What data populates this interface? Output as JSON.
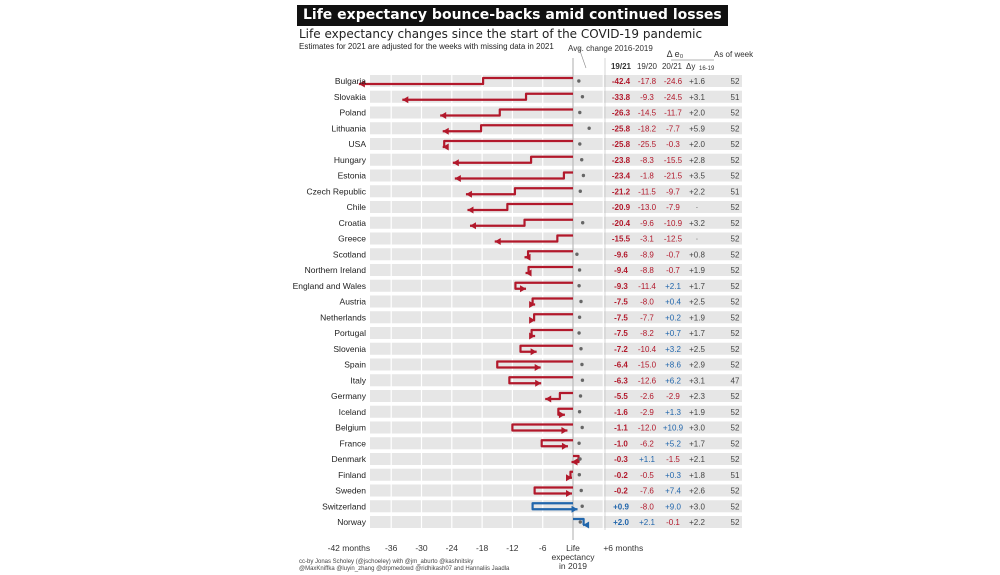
{
  "title": "Life expectancy bounce-backs amid continued losses",
  "subtitle": "Life expectancy changes since the start of the COVID-19 pandemic",
  "note": "Estimates for 2021 are adjusted for the weeks with missing data in 2021",
  "headers": {
    "avg_change": "Avg. change 2016-2019",
    "delta": "Δ e₀",
    "c1921": "19/21",
    "c1920": "19/20",
    "c2021": "20/21",
    "avg": "Δy",
    "avg_sub": "16-19",
    "asof": "As of week"
  },
  "credit": [
    "cc-by Jonas Scholey (@jschoeley) with @jm_aburto @kashnitsky",
    "@MaxKniffka @luyin_zhang @drpmedowd @ridhikash07 and Hannaliis Jaadla"
  ],
  "colors": {
    "loss": "#b2182b",
    "gain": "#2166ac",
    "band": "#e6e6e6",
    "text": "#222222"
  },
  "chart_data": {
    "type": "bar",
    "title": "Life expectancy bounce-backs amid continued losses",
    "xlabel": "months",
    "x_ticks": [
      "-42 months",
      "-36",
      "-30",
      "-24",
      "-18",
      "-12",
      "-6",
      "Life expectancy in 2019",
      "+6 months"
    ],
    "xlim": [
      -42,
      6
    ],
    "grid": true,
    "rows": [
      {
        "country": "Bulgaria",
        "d1921": "-42.4",
        "d1920": "-17.8",
        "d2021": "-24.6",
        "avg": "+1.6",
        "week": "52",
        "v1920": -17.8,
        "v1921": -42.4,
        "avgv": 1.6
      },
      {
        "country": "Slovakia",
        "d1921": "-33.8",
        "d1920": "-9.3",
        "d2021": "-24.5",
        "avg": "+3.1",
        "week": "51",
        "v1920": -9.3,
        "v1921": -33.8,
        "avgv": 3.1
      },
      {
        "country": "Poland",
        "d1921": "-26.3",
        "d1920": "-14.5",
        "d2021": "-11.7",
        "avg": "+2.0",
        "week": "52",
        "v1920": -14.5,
        "v1921": -26.3,
        "avgv": 2.0
      },
      {
        "country": "Lithuania",
        "d1921": "-25.8",
        "d1920": "-18.2",
        "d2021": "-7.7",
        "avg": "+5.9",
        "week": "52",
        "v1920": -18.2,
        "v1921": -25.8,
        "avgv": 5.9
      },
      {
        "country": "USA",
        "d1921": "-25.8",
        "d1920": "-25.5",
        "d2021": "-0.3",
        "avg": "+2.0",
        "week": "52",
        "v1920": -25.5,
        "v1921": -25.8,
        "avgv": 2.0
      },
      {
        "country": "Hungary",
        "d1921": "-23.8",
        "d1920": "-8.3",
        "d2021": "-15.5",
        "avg": "+2.8",
        "week": "52",
        "v1920": -8.3,
        "v1921": -23.8,
        "avgv": 2.8
      },
      {
        "country": "Estonia",
        "d1921": "-23.4",
        "d1920": "-1.8",
        "d2021": "-21.5",
        "avg": "+3.5",
        "week": "52",
        "v1920": -1.8,
        "v1921": -23.4,
        "avgv": 3.5
      },
      {
        "country": "Czech Republic",
        "d1921": "-21.2",
        "d1920": "-11.5",
        "d2021": "-9.7",
        "avg": "+2.2",
        "week": "51",
        "v1920": -11.5,
        "v1921": -21.2,
        "avgv": 2.2
      },
      {
        "country": "Chile",
        "d1921": "-20.9",
        "d1920": "-13.0",
        "d2021": "-7.9",
        "avg": "·",
        "week": "52",
        "v1920": -13.0,
        "v1921": -20.9,
        "avgv": null
      },
      {
        "country": "Croatia",
        "d1921": "-20.4",
        "d1920": "-9.6",
        "d2021": "-10.9",
        "avg": "+3.2",
        "week": "52",
        "v1920": -9.6,
        "v1921": -20.4,
        "avgv": 3.2
      },
      {
        "country": "Greece",
        "d1921": "-15.5",
        "d1920": "-3.1",
        "d2021": "-12.5",
        "avg": "·",
        "week": "52",
        "v1920": -3.1,
        "v1921": -15.5,
        "avgv": null
      },
      {
        "country": "Scotland",
        "d1921": "-9.6",
        "d1920": "-8.9",
        "d2021": "-0.7",
        "avg": "+0.8",
        "week": "52",
        "v1920": -8.9,
        "v1921": -9.6,
        "avgv": 0.8
      },
      {
        "country": "Northern Ireland",
        "d1921": "-9.4",
        "d1920": "-8.8",
        "d2021": "-0.7",
        "avg": "+1.9",
        "week": "52",
        "v1920": -8.8,
        "v1921": -9.4,
        "avgv": 1.9
      },
      {
        "country": "England and Wales",
        "d1921": "-9.3",
        "d1920": "-11.4",
        "d2021": "+2.1",
        "avg": "+1.7",
        "week": "52",
        "v1920": -11.4,
        "v1921": -9.3,
        "avgv": 1.7
      },
      {
        "country": "Austria",
        "d1921": "-7.5",
        "d1920": "-8.0",
        "d2021": "+0.4",
        "avg": "+2.5",
        "week": "52",
        "v1920": -8.0,
        "v1921": -7.5,
        "avgv": 2.5
      },
      {
        "country": "Netherlands",
        "d1921": "-7.5",
        "d1920": "-7.7",
        "d2021": "+0.2",
        "avg": "+1.9",
        "week": "52",
        "v1920": -7.7,
        "v1921": -7.5,
        "avgv": 1.9
      },
      {
        "country": "Portugal",
        "d1921": "-7.5",
        "d1920": "-8.2",
        "d2021": "+0.7",
        "avg": "+1.7",
        "week": "52",
        "v1920": -8.2,
        "v1921": -7.5,
        "avgv": 1.7
      },
      {
        "country": "Slovenia",
        "d1921": "-7.2",
        "d1920": "-10.4",
        "d2021": "+3.2",
        "avg": "+2.5",
        "week": "52",
        "v1920": -10.4,
        "v1921": -7.2,
        "avgv": 2.5
      },
      {
        "country": "Spain",
        "d1921": "-6.4",
        "d1920": "-15.0",
        "d2021": "+8.6",
        "avg": "+2.9",
        "week": "52",
        "v1920": -15.0,
        "v1921": -6.4,
        "avgv": 2.9
      },
      {
        "country": "Italy",
        "d1921": "-6.3",
        "d1920": "-12.6",
        "d2021": "+6.2",
        "avg": "+3.1",
        "week": "47",
        "v1920": -12.6,
        "v1921": -6.3,
        "avgv": 3.1
      },
      {
        "country": "Germany",
        "d1921": "-5.5",
        "d1920": "-2.6",
        "d2021": "-2.9",
        "avg": "+2.3",
        "week": "52",
        "v1920": -2.6,
        "v1921": -5.5,
        "avgv": 2.3
      },
      {
        "country": "Iceland",
        "d1921": "-1.6",
        "d1920": "-2.9",
        "d2021": "+1.3",
        "avg": "+1.9",
        "week": "52",
        "v1920": -2.9,
        "v1921": -1.6,
        "avgv": 1.9
      },
      {
        "country": "Belgium",
        "d1921": "-1.1",
        "d1920": "-12.0",
        "d2021": "+10.9",
        "avg": "+3.0",
        "week": "52",
        "v1920": -12.0,
        "v1921": -1.1,
        "avgv": 3.0
      },
      {
        "country": "France",
        "d1921": "-1.0",
        "d1920": "-6.2",
        "d2021": "+5.2",
        "avg": "+1.7",
        "week": "52",
        "v1920": -6.2,
        "v1921": -1.0,
        "avgv": 1.7
      },
      {
        "country": "Denmark",
        "d1921": "-0.3",
        "d1920": "+1.1",
        "d2021": "-1.5",
        "avg": "+2.1",
        "week": "52",
        "v1920": 1.1,
        "v1921": -0.3,
        "avgv": 2.1
      },
      {
        "country": "Finland",
        "d1921": "-0.2",
        "d1920": "-0.5",
        "d2021": "+0.3",
        "avg": "+1.8",
        "week": "51",
        "v1920": -0.5,
        "v1921": -0.2,
        "avgv": 1.8
      },
      {
        "country": "Sweden",
        "d1921": "-0.2",
        "d1920": "-7.6",
        "d2021": "+7.4",
        "avg": "+2.6",
        "week": "52",
        "v1920": -7.6,
        "v1921": -0.2,
        "avgv": 2.6
      },
      {
        "country": "Switzerland",
        "d1921": "+0.9",
        "d1920": "-8.0",
        "d2021": "+9.0",
        "avg": "+3.0",
        "week": "52",
        "v1920": -8.0,
        "v1921": 0.9,
        "avgv": 3.0
      },
      {
        "country": "Norway",
        "d1921": "+2.0",
        "d1920": "+2.1",
        "d2021": "-0.1",
        "avg": "+2.2",
        "week": "52",
        "v1920": 2.1,
        "v1921": 2.0,
        "avgv": 2.2
      }
    ]
  }
}
